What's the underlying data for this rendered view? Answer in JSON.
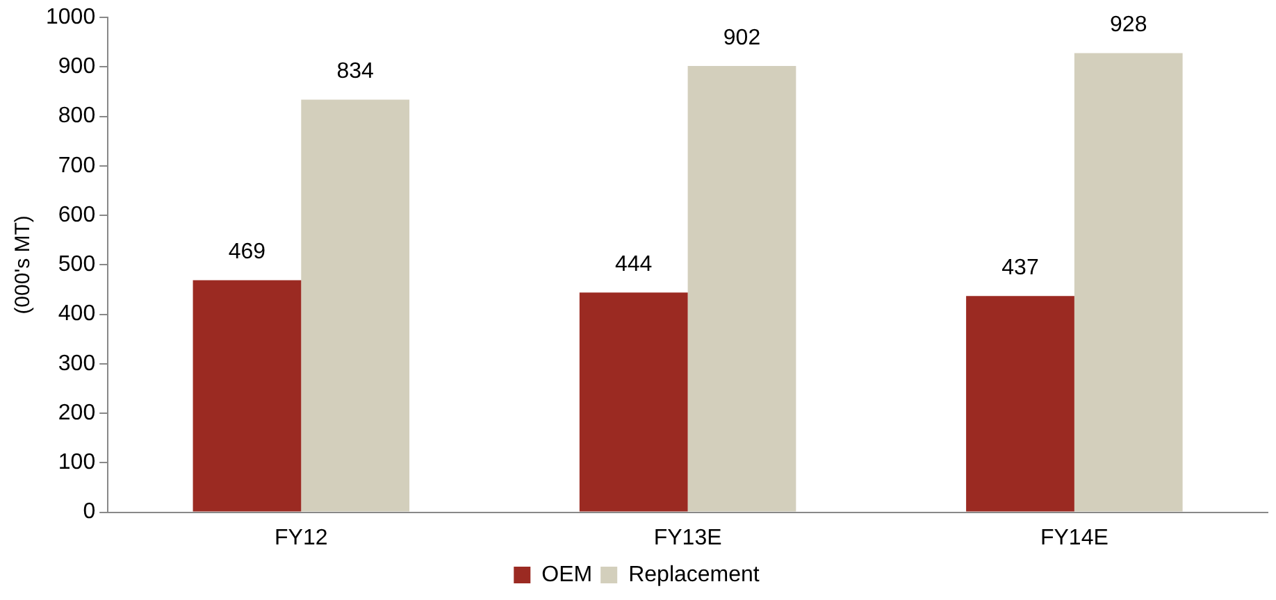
{
  "chart_data": {
    "type": "bar",
    "ylabel": "(000's MT)",
    "categories": [
      "FY12",
      "FY13E",
      "FY14E"
    ],
    "series": [
      {
        "name": "OEM",
        "color": "#9b2a22",
        "values": [
          469,
          444,
          437
        ]
      },
      {
        "name": "Replacement",
        "color": "#d3cfbc",
        "values": [
          834,
          902,
          928
        ]
      }
    ],
    "ylim": [
      0,
      1000
    ],
    "yticks": [
      0,
      100,
      200,
      300,
      400,
      500,
      600,
      700,
      800,
      900,
      1000
    ],
    "grid": false,
    "legend": "bottom",
    "data_labels": true
  }
}
